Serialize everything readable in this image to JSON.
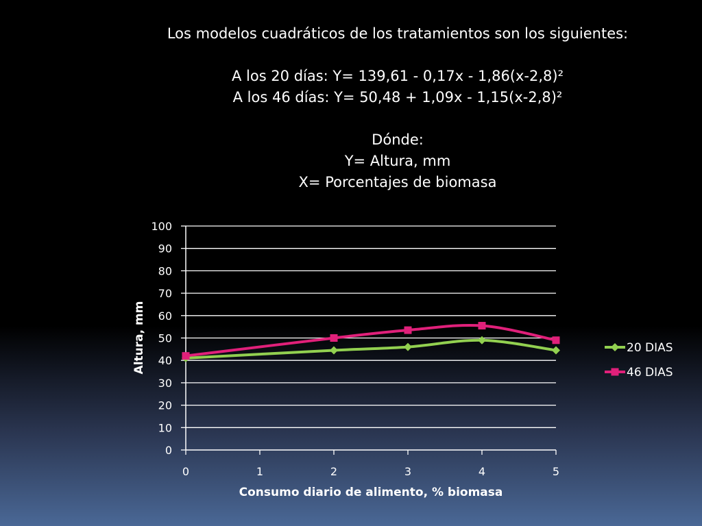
{
  "slide": {
    "heading": "Los modelos cuadráticos de los tratamientos son los siguientes:",
    "model_20": "A los 20 días: Y= 139,61 - 0,17x - 1,86(x-2,8)²",
    "model_46": "A los 46 días: Y= 50,48 + 1,09x - 1,15(x-2,8)²",
    "where_label": "Dónde:",
    "y_definition": "Y= Altura, mm",
    "x_definition": "X= Porcentajes de biomasa"
  },
  "chart_data": {
    "type": "line",
    "xlabel": "Consumo diario de alimento, % biomasa",
    "ylabel": "Altura, mm",
    "xlim": [
      0,
      5
    ],
    "ylim": [
      0,
      100
    ],
    "x_ticks": [
      "0",
      "1",
      "2",
      "3",
      "4",
      "5"
    ],
    "y_ticks": [
      "0",
      "10",
      "20",
      "30",
      "40",
      "50",
      "60",
      "70",
      "80",
      "90",
      "100"
    ],
    "grid": true,
    "smooth": true,
    "legend_position": "right",
    "series": [
      {
        "name": "20 DIAS",
        "color": "#92d050",
        "marker": "diamond",
        "points": [
          [
            0,
            41
          ],
          [
            2,
            44.5
          ],
          [
            3,
            46
          ],
          [
            4,
            49
          ],
          [
            5,
            44.5
          ]
        ]
      },
      {
        "name": "46 DIAS",
        "color": "#e0207a",
        "marker": "square",
        "points": [
          [
            0,
            42
          ],
          [
            2,
            50
          ],
          [
            3,
            53.5
          ],
          [
            4,
            55.5
          ],
          [
            5,
            49
          ]
        ]
      }
    ]
  }
}
